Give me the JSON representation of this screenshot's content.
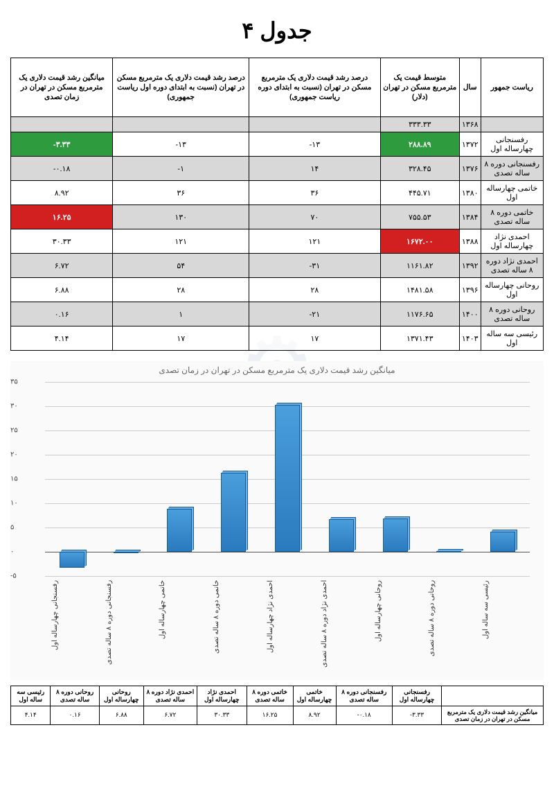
{
  "title": "جدول ۴",
  "main_table": {
    "columns": [
      "ریاست جمهور",
      "سال",
      "متوسط قیمت یک مترمربع مسکن در تهران (دلار)",
      "درصد رشد قیمت دلاری یک مترمربع مسکن در تهران (نسبت به ابتدای دوره ریاست جمهوری)",
      "درصد رشد قیمت دلاری یک مترمربع مسکن در تهران (نسبت به ابتدای دوره اول ریاست جمهوری)",
      "میانگین رشد قیمت دلاری یک مترمربع مسکن در تهران در زمان تصدی"
    ],
    "rows": [
      {
        "cells": [
          "",
          "۱۳۶۸",
          "۳۳۳.۳۳",
          "",
          "",
          ""
        ],
        "alt": true
      },
      {
        "cells": [
          "رفسنجانی چهارساله اول",
          "۱۳۷۲",
          "۲۸۸.۸۹",
          "۱۳-",
          "۱۳-",
          "۳.۳۳-"
        ],
        "highlight": {
          "2": "green",
          "5": "green"
        }
      },
      {
        "cells": [
          "رفسنجانی دوره ۸ ساله تصدی",
          "۱۳۷۶",
          "۳۲۸.۴۵",
          "۱۴",
          "۱-",
          "۰.۱۸-"
        ],
        "alt": true
      },
      {
        "cells": [
          "خاتمی چهارساله اول",
          "۱۳۸۰",
          "۴۴۵.۷۱",
          "۳۶",
          "۳۶",
          "۸.۹۲"
        ]
      },
      {
        "cells": [
          "خاتمی دوره ۸ ساله تصدی",
          "۱۳۸۴",
          "۷۵۵.۵۳",
          "۷۰",
          "۱۳۰",
          "۱۶.۲۵"
        ],
        "alt": true,
        "highlight": {
          "5": "red"
        }
      },
      {
        "cells": [
          "احمدی نژاد چهارساله اول",
          "۱۳۸۸",
          "۱۶۷۲.۰۰",
          "۱۲۱",
          "۱۲۱",
          "۳۰.۳۳"
        ],
        "highlight": {
          "2": "red"
        }
      },
      {
        "cells": [
          "احمدی نژاد دوره ۸ ساله تصدی",
          "۱۳۹۲",
          "۱۱۶۱.۸۲",
          "۳۱-",
          "۵۴",
          "۶.۷۲"
        ],
        "alt": true
      },
      {
        "cells": [
          "روحانی چهارساله اول",
          "۱۳۹۶",
          "۱۴۸۱.۵۸",
          "۲۸",
          "۲۸",
          "۶.۸۸"
        ]
      },
      {
        "cells": [
          "روحانی دوره ۸ ساله تصدی",
          "۱۴۰۰",
          "۱۱۷۶.۶۵",
          "۲۱-",
          "۱",
          "۰.۱۶"
        ],
        "alt": true
      },
      {
        "cells": [
          "رئیسی سه ساله اول",
          "۱۴۰۳",
          "۱۳۷۱.۴۳",
          "۱۷",
          "۱۷",
          "۴.۱۴"
        ]
      }
    ]
  },
  "chart": {
    "title": "میانگین رشد قیمت دلاری یک مترمربع مسکن در تهران در زمان تصدی",
    "type": "bar",
    "ymin": -5,
    "ymax": 35,
    "ystep": 5,
    "bar_color": "#3a8ccc",
    "grid_color": "#cccccc",
    "background_color": "#fafafa",
    "categories": [
      "رفسنجانی چهارساله اول",
      "رفسنجانی دوره ۸ ساله تصدی",
      "خاتمی چهارساله اول",
      "خاتمی دوره ۸ ساله تصدی",
      "احمدی نژاد چهارساله اول",
      "احمدی نژاد دوره ۸ ساله تصدی",
      "روحانی چهارساله اول",
      "روحانی دوره ۸ ساله تصدی",
      "رئیسی سه ساله اول"
    ],
    "values": [
      -3.33,
      -0.18,
      8.92,
      16.25,
      30.33,
      6.72,
      6.88,
      0.16,
      4.14
    ],
    "yticks_persian": [
      "۵-",
      "۰",
      "۵",
      "۱۰",
      "۱۵",
      "۲۰",
      "۲۵",
      "۳۰",
      "۳۵"
    ],
    "ytick_values": [
      -5,
      0,
      5,
      10,
      15,
      20,
      25,
      30,
      35
    ]
  },
  "small_table": {
    "row_label": "میانگین رشد قیمت دلاری یک مترمربع مسکن در تهران در زمان تصدی",
    "headers": [
      "رفسنجانی چهارساله اول",
      "رفسنجانی دوره ۸ ساله تصدی",
      "خاتمی چهارساله اول",
      "خاتمی دوره ۸ ساله تصدی",
      "احمدی نژاد چهارساله اول",
      "احمدی نژاد دوره ۸ ساله تصدی",
      "روحانی چهارساله اول",
      "روحانی دوره ۸ ساله تصدی",
      "رئیسی سه ساله اول"
    ],
    "values": [
      "۳.۳۳-",
      "۰.۱۸-",
      "۸.۹۲",
      "۱۶.۲۵",
      "۳۰.۳۳",
      "۶.۷۲",
      "۶.۸۸",
      "۰.۱۶",
      "۴.۱۴"
    ]
  }
}
